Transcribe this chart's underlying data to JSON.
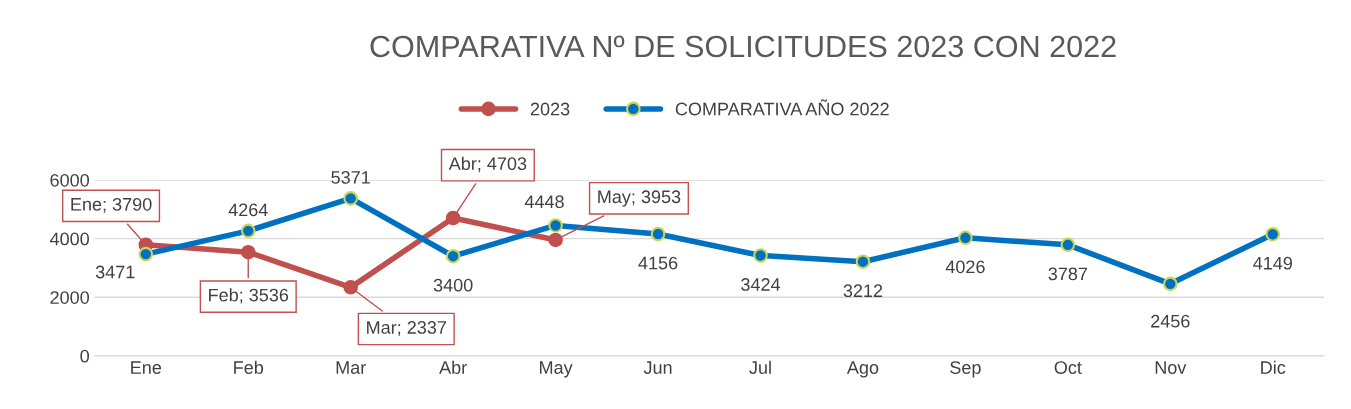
{
  "chart_data": {
    "type": "line",
    "title": "COMPARATIVA Nº DE SOLICITUDES 2023 CON 2022",
    "categories": [
      "Ene",
      "Feb",
      "Mar",
      "Abr",
      "May",
      "Jun",
      "Jul",
      "Ago",
      "Sep",
      "Oct",
      "Nov",
      "Dic"
    ],
    "series": [
      {
        "name": "2023",
        "color": "#c0504d",
        "values": [
          3790,
          3536,
          2337,
          4703,
          3953,
          null,
          null,
          null,
          null,
          null,
          null,
          null
        ],
        "value_labels": [
          "Ene; 3790",
          "Feb; 3536",
          "Mar; 2337",
          "Abr; 4703",
          "May; 3953",
          null,
          null,
          null,
          null,
          null,
          null,
          null
        ]
      },
      {
        "name": "COMPARATIVA AÑO 2022",
        "color": "#0070c0",
        "values": [
          3471,
          4264,
          5371,
          3400,
          4448,
          4156,
          3424,
          3212,
          4026,
          3787,
          2456,
          4149
        ],
        "value_labels": [
          "3471",
          "4264",
          "5371",
          "3400",
          "4448",
          "4156",
          "3424",
          "3212",
          "4026",
          "3787",
          "2456",
          "4149"
        ]
      }
    ],
    "ylim": [
      0,
      6000
    ],
    "yticks": [
      0,
      2000,
      4000,
      6000
    ],
    "grid": "y",
    "legend": "top",
    "marker": "circle",
    "line_style": "solid"
  }
}
